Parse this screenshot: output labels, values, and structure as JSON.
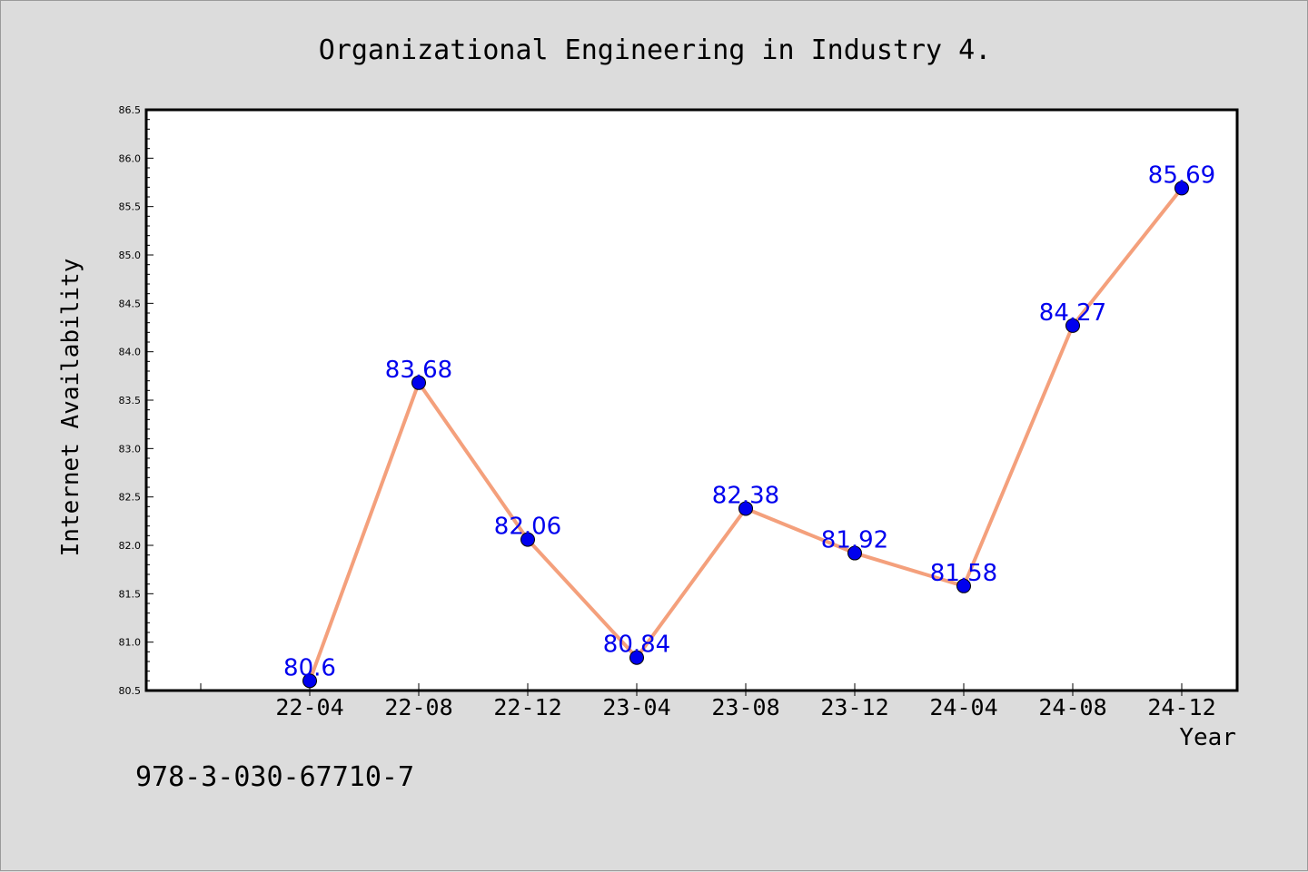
{
  "chart_data": {
    "type": "line",
    "title": "Organizational Engineering in Industry 4.",
    "xlabel": "Year",
    "ylabel": "Internet Availability",
    "categories": [
      "22-04",
      "22-08",
      "22-12",
      "23-04",
      "23-08",
      "23-12",
      "24-04",
      "24-08",
      "24-12"
    ],
    "series": [
      {
        "values": [
          80.6,
          83.68,
          82.06,
          80.84,
          82.38,
          81.92,
          81.58,
          84.27,
          85.69
        ]
      }
    ],
    "data_labels": [
      "80.6",
      "83.68",
      "82.06",
      "80.84",
      "82.38",
      "81.92",
      "81.58",
      "84.27",
      "85.69"
    ],
    "ylim": [
      80.5,
      86.5
    ],
    "yticks": [
      "80.5",
      "81.0",
      "81.5",
      "82.0",
      "82.5",
      "83.0",
      "83.5",
      "84.0",
      "84.5",
      "85.0",
      "85.5",
      "86.0",
      "86.5"
    ],
    "grid": false,
    "legend": "none",
    "colors": {
      "line": "#f4a07c",
      "marker": "#0000ee",
      "label": "#0000ee",
      "plot_bg": "#ffffff",
      "figure_bg": "#dcdcdc"
    }
  },
  "footer_text": "978-3-030-67710-7"
}
